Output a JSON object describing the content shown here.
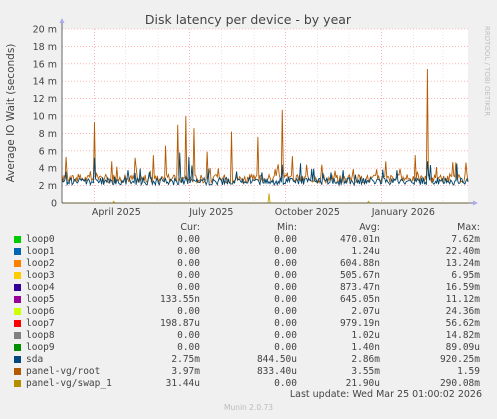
{
  "chart_data": {
    "type": "line",
    "title": "Disk latency per device - by year",
    "ylabel": "Average IO Wait (seconds)",
    "side_label": "RRDTOOL / TOBI OETIKER",
    "ylim": [
      0,
      0.02
    ],
    "y_ticks": [
      {
        "value": 0,
        "label": "0"
      },
      {
        "value": 0.002,
        "label": "2 m"
      },
      {
        "value": 0.004,
        "label": "4 m"
      },
      {
        "value": 0.006,
        "label": "6 m"
      },
      {
        "value": 0.008,
        "label": "8 m"
      },
      {
        "value": 0.01,
        "label": "10 m"
      },
      {
        "value": 0.012,
        "label": "12 m"
      },
      {
        "value": 0.014,
        "label": "14 m"
      },
      {
        "value": 0.016,
        "label": "16 m"
      },
      {
        "value": 0.018,
        "label": "18 m"
      },
      {
        "value": 0.02,
        "label": "20 m"
      }
    ],
    "x_range": [
      "2025-03-01",
      "2026-03-25"
    ],
    "x_ticks": [
      {
        "date": "2025-04-01",
        "label": "April 2025"
      },
      {
        "date": "2025-07-01",
        "label": "July 2025"
      },
      {
        "date": "2025-10-01",
        "label": "October 2025"
      },
      {
        "date": "2026-01-01",
        "label": "January 2026"
      }
    ],
    "grid": true,
    "series": [
      {
        "name": "panel-vg/root",
        "color": "#b35a00",
        "base": 0.0028,
        "spikes": [
          {
            "date": "2025-03-05",
            "value": 0.0053
          },
          {
            "date": "2025-04-01",
            "value": 0.0093
          },
          {
            "date": "2025-04-18",
            "value": 0.0048
          },
          {
            "date": "2025-05-10",
            "value": 0.0052
          },
          {
            "date": "2025-05-28",
            "value": 0.0055
          },
          {
            "date": "2025-06-08",
            "value": 0.0066
          },
          {
            "date": "2025-06-20",
            "value": 0.009
          },
          {
            "date": "2025-06-28",
            "value": 0.01
          },
          {
            "date": "2025-07-05",
            "value": 0.0086
          },
          {
            "date": "2025-07-18",
            "value": 0.0059
          },
          {
            "date": "2025-08-10",
            "value": 0.0082
          },
          {
            "date": "2025-09-05",
            "value": 0.0076
          },
          {
            "date": "2025-09-28",
            "value": 0.0107
          },
          {
            "date": "2025-10-08",
            "value": 0.0054
          },
          {
            "date": "2025-11-05",
            "value": 0.0044
          },
          {
            "date": "2025-12-05",
            "value": 0.0039
          },
          {
            "date": "2026-01-05",
            "value": 0.0048
          },
          {
            "date": "2026-02-02",
            "value": 0.0055
          },
          {
            "date": "2026-02-14",
            "value": 0.0154
          },
          {
            "date": "2026-03-10",
            "value": 0.0047
          }
        ]
      },
      {
        "name": "sda",
        "color": "#00456e",
        "base": 0.0025,
        "spikes": [
          {
            "date": "2025-03-05",
            "value": 0.0036
          },
          {
            "date": "2025-04-01",
            "value": 0.0052
          },
          {
            "date": "2025-06-22",
            "value": 0.0058
          },
          {
            "date": "2025-07-01",
            "value": 0.0053
          },
          {
            "date": "2025-09-28",
            "value": 0.0044
          },
          {
            "date": "2026-02-14",
            "value": 0.0048
          }
        ]
      },
      {
        "name": "panel-vg/swap_1",
        "color": "#c8a800",
        "base": 0.0,
        "spikes": [
          {
            "date": "2025-09-15",
            "value": 0.0011
          },
          {
            "date": "2025-04-20",
            "value": 0.0002
          },
          {
            "date": "2025-12-20",
            "value": 0.0002
          }
        ]
      }
    ]
  },
  "legend": {
    "headers": {
      "cur": "Cur:",
      "min": "Min:",
      "avg": "Avg:",
      "max": "Max:"
    },
    "rows": [
      {
        "name": "loop0",
        "color": "#00cc00",
        "cur": "0.00",
        "min": "0.00",
        "avg": "470.01n",
        "max": "7.62m"
      },
      {
        "name": "loop1",
        "color": "#0066b3",
        "cur": "0.00",
        "min": "0.00",
        "avg": "1.24u",
        "max": "22.40m"
      },
      {
        "name": "loop2",
        "color": "#ff8000",
        "cur": "0.00",
        "min": "0.00",
        "avg": "604.88n",
        "max": "13.24m"
      },
      {
        "name": "loop3",
        "color": "#ffcc00",
        "cur": "0.00",
        "min": "0.00",
        "avg": "505.67n",
        "max": "6.95m"
      },
      {
        "name": "loop4",
        "color": "#330099",
        "cur": "0.00",
        "min": "0.00",
        "avg": "873.47n",
        "max": "16.59m"
      },
      {
        "name": "loop5",
        "color": "#990099",
        "cur": "133.55n",
        "min": "0.00",
        "avg": "645.05n",
        "max": "11.12m"
      },
      {
        "name": "loop6",
        "color": "#ccff00",
        "cur": "0.00",
        "min": "0.00",
        "avg": "2.07u",
        "max": "24.36m"
      },
      {
        "name": "loop7",
        "color": "#ff0000",
        "cur": "198.87u",
        "min": "0.00",
        "avg": "979.19n",
        "max": "56.62m"
      },
      {
        "name": "loop8",
        "color": "#808080",
        "cur": "0.00",
        "min": "0.00",
        "avg": "1.02u",
        "max": "14.82m"
      },
      {
        "name": "loop9",
        "color": "#008f00",
        "cur": "0.00",
        "min": "0.00",
        "avg": "1.40n",
        "max": "89.09u"
      },
      {
        "name": "sda",
        "color": "#00487d",
        "cur": "2.75m",
        "min": "844.50u",
        "avg": "2.86m",
        "max": "920.25m"
      },
      {
        "name": "panel-vg/root",
        "color": "#b35a00",
        "cur": "3.97m",
        "min": "833.40u",
        "avg": "3.55m",
        "max": "1.59"
      },
      {
        "name": "panel-vg/swap_1",
        "color": "#b38f00",
        "cur": "31.44u",
        "min": "0.00",
        "avg": "21.90u",
        "max": "290.08m"
      }
    ]
  },
  "last_update": "Last update: Wed Mar 25 01:00:02 2026",
  "footer": "Munin 2.0.73"
}
